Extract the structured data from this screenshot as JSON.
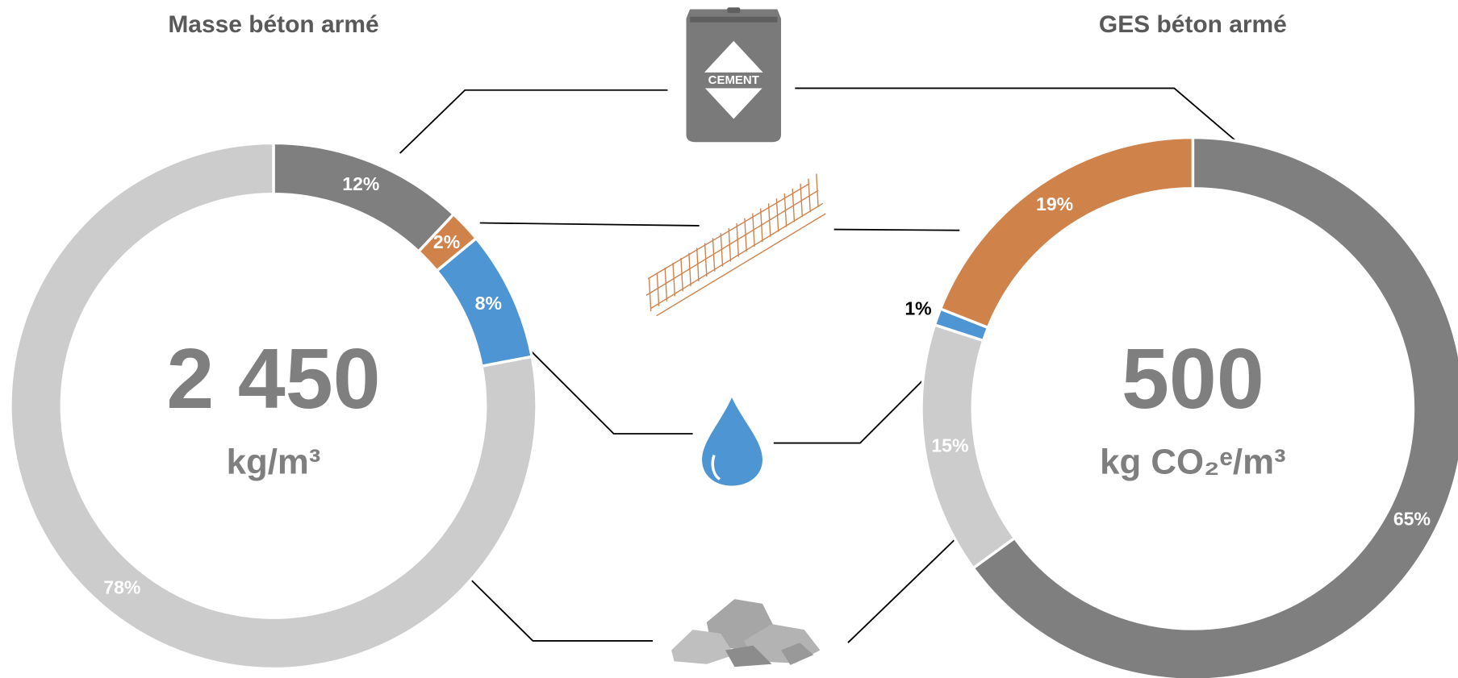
{
  "chart_data": [
    {
      "type": "donut",
      "title": "Masse béton armé",
      "center_label": "2 450",
      "center_unit": "kg/m³",
      "values": [
        12,
        2,
        8,
        78
      ],
      "value_labels": [
        "12%",
        "2%",
        "8%",
        "78%"
      ],
      "colors": [
        "#7f7f7f",
        "#d0824b",
        "#4e95d3",
        "#cccccc"
      ]
    },
    {
      "type": "donut",
      "title": "GES béton armé",
      "center_label": "500",
      "center_unit": "kg CO₂ᵉ/m³",
      "values": [
        65,
        15,
        1,
        19
      ],
      "value_labels": [
        "65%",
        "15%",
        "1%",
        "19%"
      ],
      "colors": [
        "#7f7f7f",
        "#cccccc",
        "#4e95d3",
        "#d0824b"
      ]
    }
  ],
  "cement_bag_label": "CEMENT"
}
